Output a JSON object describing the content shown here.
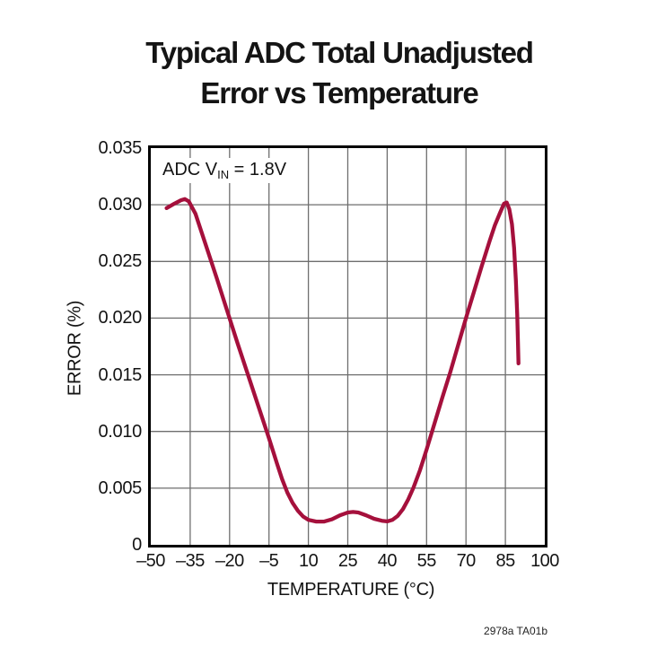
{
  "title": {
    "line1": "Typical ADC Total Unadjusted",
    "line2": "Error vs Temperature"
  },
  "annotation": {
    "prefix": "ADC V",
    "subscript": "IN",
    "suffix": " = 1.8V"
  },
  "footnote": "2978a TA01b",
  "colors": {
    "curve": "#A5103C",
    "grid": "#6E6E6E",
    "frame": "#000000",
    "background": "#FFFFFF",
    "text": "#141414"
  },
  "chart_data": {
    "type": "line",
    "title": "Typical ADC Total Unadjusted Error vs Temperature",
    "xlabel": "TEMPERATURE (°C)",
    "ylabel": "ERROR (%)",
    "xlim": [
      -50,
      100
    ],
    "ylim": [
      0,
      0.035
    ],
    "x_ticks": [
      -50,
      -35,
      -20,
      -5,
      10,
      25,
      40,
      55,
      70,
      85,
      100
    ],
    "x_tick_labels": [
      "–50",
      "–35",
      "–20",
      "–5",
      "10",
      "25",
      "40",
      "55",
      "70",
      "85",
      "100"
    ],
    "y_ticks": [
      0,
      0.005,
      0.01,
      0.015,
      0.02,
      0.025,
      0.03,
      0.035
    ],
    "y_tick_labels": [
      "0",
      "0.005",
      "0.010",
      "0.015",
      "0.020",
      "0.025",
      "0.030",
      "0.035"
    ],
    "grid": true,
    "legend": "none",
    "annotation": "ADC VIN = 1.8V",
    "series": [
      {
        "name": "ADC total unadjusted error",
        "color": "#A5103C",
        "points": [
          [
            -44,
            0.0297
          ],
          [
            -41,
            0.0301
          ],
          [
            -38.5,
            0.0304
          ],
          [
            -37,
            0.0305
          ],
          [
            -35.5,
            0.0303
          ],
          [
            -33,
            0.0292
          ],
          [
            -29,
            0.0264
          ],
          [
            -25,
            0.0236
          ],
          [
            -21,
            0.0207
          ],
          [
            -17,
            0.0178
          ],
          [
            -13,
            0.015
          ],
          [
            -9,
            0.0122
          ],
          [
            -5,
            0.0094
          ],
          [
            -2,
            0.0072
          ],
          [
            0,
            0.0058
          ],
          [
            2,
            0.0046
          ],
          [
            4,
            0.0037
          ],
          [
            6,
            0.003
          ],
          [
            8,
            0.0025
          ],
          [
            10,
            0.0022
          ],
          [
            13,
            0.00205
          ],
          [
            16,
            0.00205
          ],
          [
            19,
            0.00225
          ],
          [
            22,
            0.0026
          ],
          [
            25,
            0.00285
          ],
          [
            27,
            0.0029
          ],
          [
            29,
            0.00285
          ],
          [
            32,
            0.0026
          ],
          [
            35,
            0.0023
          ],
          [
            38,
            0.00212
          ],
          [
            40,
            0.00207
          ],
          [
            42,
            0.0022
          ],
          [
            44,
            0.00255
          ],
          [
            46,
            0.00315
          ],
          [
            48,
            0.004
          ],
          [
            50,
            0.00505
          ],
          [
            52.5,
            0.0066
          ],
          [
            55,
            0.0084
          ],
          [
            58,
            0.0107
          ],
          [
            61,
            0.013
          ],
          [
            64,
            0.0152
          ],
          [
            67,
            0.0176
          ],
          [
            70,
            0.02
          ],
          [
            73,
            0.0223
          ],
          [
            76,
            0.0246
          ],
          [
            79,
            0.0268
          ],
          [
            81,
            0.0282
          ],
          [
            83,
            0.0293
          ],
          [
            84.5,
            0.0301
          ],
          [
            85.5,
            0.0302
          ],
          [
            86.5,
            0.0296
          ],
          [
            87.5,
            0.0283
          ],
          [
            88.3,
            0.0262
          ],
          [
            89,
            0.0233
          ],
          [
            89.5,
            0.0203
          ],
          [
            89.8,
            0.0179
          ],
          [
            90,
            0.016
          ]
        ]
      }
    ]
  }
}
